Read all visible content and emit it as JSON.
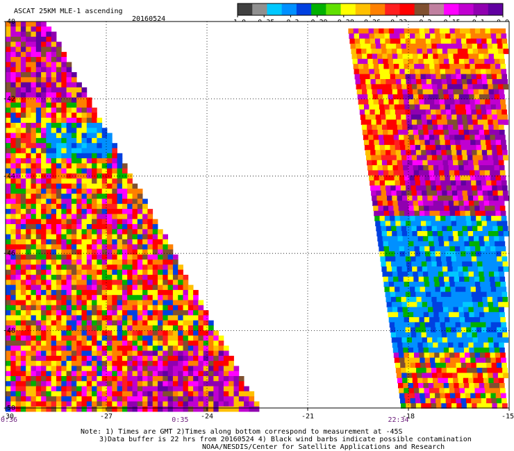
{
  "header": {
    "title": "ASCAT 25KM MLE-1 ascending",
    "date": "20160524"
  },
  "colorbar": {
    "colors": [
      "#404040",
      "#909090",
      "#00c8ff",
      "#0090ff",
      "#0040e0",
      "#00b000",
      "#60e000",
      "#ffff00",
      "#ffc000",
      "#ff8000",
      "#ff2020",
      "#ff0000",
      "#805030",
      "#c080a0",
      "#ff00ff",
      "#c000d0",
      "#9000b0",
      "#6000a0"
    ],
    "labels": [
      "-1.0",
      "-0.35",
      "-0.3",
      "-0.29",
      "-0.28",
      "-0.26",
      "-0.23",
      "-0.2",
      "-0.15",
      "-0.1",
      "0.0"
    ]
  },
  "map": {
    "lon_ticks": [
      "-30",
      "-27",
      "-24",
      "-21",
      "-18",
      "-15"
    ],
    "lat_ticks": [
      "-40",
      "-42",
      "-44",
      "-46",
      "-48",
      "-50"
    ],
    "time_labels": [
      {
        "text": "0:36",
        "lon": -30.0
      },
      {
        "text": "0:35",
        "lon": -24.8
      },
      {
        "text": "22:34",
        "lon": -18.3
      }
    ]
  },
  "notes": {
    "line1": "Note: 1) Times are GMT 2)Times along bottom correspond to measurement at -45S",
    "line2": "3)Data buffer is 22 hrs from 20160524 4) Black wind barbs indicate possible contamination",
    "line3": "NOAA/NESDIS/Center for Satellite Applications and Research"
  }
}
